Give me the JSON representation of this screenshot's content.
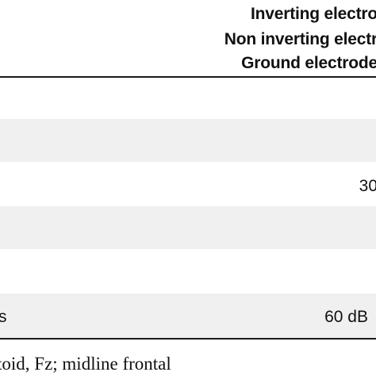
{
  "header": {
    "lines": [
      "Inverting electro",
      "Non inverting electr",
      "Ground electrode"
    ]
  },
  "rows": [
    {
      "left": "",
      "right": ""
    },
    {
      "left": "",
      "right": ""
    },
    {
      "left": "",
      "right": "30"
    },
    {
      "left": "",
      "right": ""
    },
    {
      "left": "",
      "right": ""
    },
    {
      "left": "s",
      "right": "60 dB"
    }
  ],
  "footnote": "toid, Fz; midline frontal",
  "colors": {
    "band": "#f0f0f0",
    "rule": "#1a1a1a",
    "text": "#111111"
  }
}
